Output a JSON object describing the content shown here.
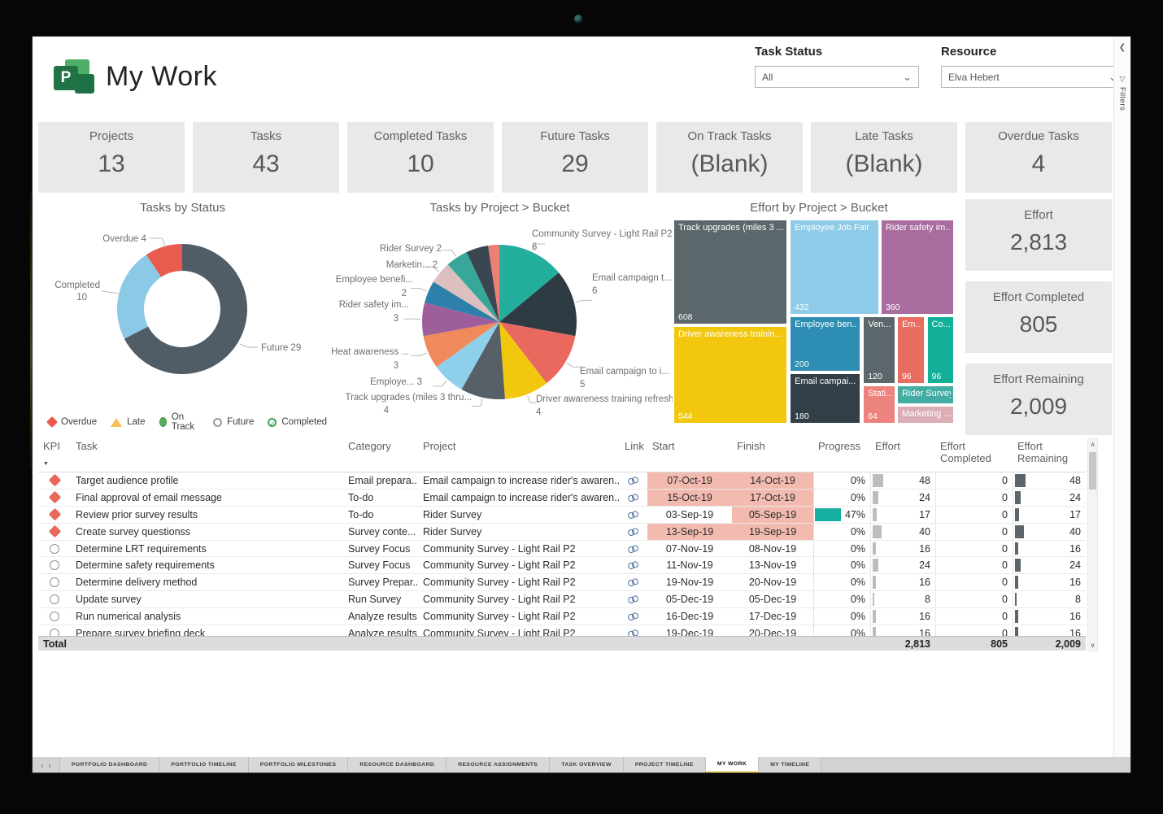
{
  "header": {
    "title": "My Work",
    "task_status_label": "Task Status",
    "task_status_value": "All",
    "resource_label": "Resource",
    "resource_value": "Elva Hebert",
    "filters_pane_label": "Filters"
  },
  "kpi_cards": [
    {
      "label": "Projects",
      "value": "13"
    },
    {
      "label": "Tasks",
      "value": "43"
    },
    {
      "label": "Completed Tasks",
      "value": "10"
    },
    {
      "label": "Future Tasks",
      "value": "29"
    },
    {
      "label": "On Track Tasks",
      "value": "(Blank)"
    },
    {
      "label": "Late Tasks",
      "value": "(Blank)"
    },
    {
      "label": "Overdue Tasks",
      "value": "4"
    }
  ],
  "effort_cards": [
    {
      "label": "Effort",
      "value": "2,813"
    },
    {
      "label": "Effort Completed",
      "value": "805"
    },
    {
      "label": "Effort Remaining",
      "value": "2,009"
    }
  ],
  "chart_data": [
    {
      "type": "donut",
      "title": "Tasks by Status",
      "series": [
        {
          "label": "Future",
          "value": 29,
          "color": "#505C66"
        },
        {
          "label": "Completed",
          "value": 10,
          "color": "#8CC9E6"
        },
        {
          "label": "Overdue",
          "value": 4,
          "color": "#E95A4F"
        }
      ],
      "legend": [
        {
          "label": "Overdue",
          "shape": "diamond",
          "color": "#E8594E"
        },
        {
          "label": "Late",
          "shape": "triangle",
          "color": "#F7BE5A"
        },
        {
          "label": "On Track",
          "shape": "circle",
          "color": "#5BAD5C"
        },
        {
          "label": "Future",
          "shape": "ring",
          "color": "#9A9A9A"
        },
        {
          "label": "Completed",
          "shape": "check",
          "color": "#3FA45B"
        }
      ]
    },
    {
      "type": "pie",
      "title": "Tasks by Project > Bucket",
      "slices": [
        {
          "label": "Community Survey - Light Rail P2",
          "value": 6,
          "color": "#23AE9D"
        },
        {
          "label": "Email campaign t...",
          "value": 6,
          "color": "#2F3B43"
        },
        {
          "label": "Email campaign to i...",
          "value": 5,
          "color": "#E9695E"
        },
        {
          "label": "Driver awareness training refresh",
          "value": 4,
          "color": "#F2C80F"
        },
        {
          "label": "Track upgrades (miles 3 thru...",
          "value": 4,
          "color": "#576066"
        },
        {
          "label": "Employe...",
          "value": 3,
          "color": "#8ED0EC"
        },
        {
          "label": "Heat awareness ...",
          "value": 3,
          "color": "#EF8A5B"
        },
        {
          "label": "Rider safety im...",
          "value": 3,
          "color": "#9D5E9B"
        },
        {
          "label": "Employee benefi...",
          "value": 2,
          "color": "#2C80A9"
        },
        {
          "label": "Marketin...",
          "value": 2,
          "color": "#DCBFBF"
        },
        {
          "label": "Rider Survey",
          "value": 2,
          "color": "#37A79A"
        },
        {
          "label": "",
          "value": 2,
          "color": "#3A4750"
        },
        {
          "label": "",
          "value": 1,
          "color": "#EE7F76"
        }
      ]
    },
    {
      "type": "treemap",
      "title": "Effort by Project > Bucket",
      "cells": [
        {
          "label": "Track upgrades (miles 3 ...",
          "value": "608",
          "color": "#5C676C"
        },
        {
          "label": "Driver awareness trainin...",
          "value": "544",
          "color": "#F2C80F"
        },
        {
          "label": "Employee Job Fair",
          "value": "432",
          "color": "#8DCBE8"
        },
        {
          "label": "Rider safety im...",
          "value": "360",
          "color": "#A96C9F"
        },
        {
          "label": "Employee ben...",
          "value": "200",
          "color": "#2D8DB2"
        },
        {
          "label": "Email campai...",
          "value": "180",
          "color": "#333F47"
        },
        {
          "label": "Ven...",
          "value": "120",
          "color": "#5C676C"
        },
        {
          "label": "Em...",
          "value": "96",
          "color": "#E96C60"
        },
        {
          "label": "Co...",
          "value": "96",
          "color": "#12B098"
        },
        {
          "label": "Stati...",
          "value": "64",
          "color": "#EC837C"
        },
        {
          "label": "Rider Survey",
          "value": "",
          "color": "#43ADA3"
        },
        {
          "label": "Marketing ...",
          "value": "",
          "color": "#DBAEB6"
        }
      ]
    }
  ],
  "table": {
    "headers": [
      "KPI",
      "Task",
      "Category",
      "Project",
      "Link",
      "Start",
      "Finish",
      "Progress",
      "Effort",
      "Effort Completed",
      "Effort Remaining"
    ],
    "highlight_color": "#F3BAAF",
    "progress_color": "#18AFA3",
    "effort_bar_color": "#BDBDBD",
    "remaining_bar_color": "#5B666C",
    "overdue_color": "#E8685C",
    "rows": [
      {
        "kpi": "overdue",
        "task": "Target audience profile",
        "category": "Email prepara...",
        "project": "Email campaign to increase rider's awaren...",
        "start": "07-Oct-19",
        "finish": "14-Oct-19",
        "start_hl": true,
        "finish_hl": true,
        "progress": "0%",
        "pct": 0,
        "effort": 48,
        "completed": 0,
        "remaining": 48
      },
      {
        "kpi": "overdue",
        "task": "Final approval of email message",
        "category": "To-do",
        "project": "Email campaign to increase rider's awaren...",
        "start": "15-Oct-19",
        "finish": "17-Oct-19",
        "start_hl": true,
        "finish_hl": true,
        "progress": "0%",
        "pct": 0,
        "effort": 24,
        "completed": 0,
        "remaining": 24
      },
      {
        "kpi": "overdue",
        "task": "Review prior survey results",
        "category": "To-do",
        "project": "Rider Survey",
        "start": "03-Sep-19",
        "finish": "05-Sep-19",
        "start_hl": false,
        "finish_hl": true,
        "progress": "47%",
        "pct": 47,
        "effort": 17,
        "completed": 0,
        "remaining": 17
      },
      {
        "kpi": "overdue",
        "task": "Create survey questionss",
        "category": "Survey conte...",
        "project": "Rider Survey",
        "start": "13-Sep-19",
        "finish": "19-Sep-19",
        "start_hl": true,
        "finish_hl": true,
        "progress": "0%",
        "pct": 0,
        "effort": 40,
        "completed": 0,
        "remaining": 40
      },
      {
        "kpi": "future",
        "task": "Determine LRT requirements",
        "category": "Survey Focus",
        "project": "Community Survey - Light Rail P2",
        "start": "07-Nov-19",
        "finish": "08-Nov-19",
        "start_hl": false,
        "finish_hl": false,
        "progress": "0%",
        "pct": 0,
        "effort": 16,
        "completed": 0,
        "remaining": 16
      },
      {
        "kpi": "future",
        "task": "Determine safety requirements",
        "category": "Survey Focus",
        "project": "Community Survey - Light Rail P2",
        "start": "11-Nov-19",
        "finish": "13-Nov-19",
        "start_hl": false,
        "finish_hl": false,
        "progress": "0%",
        "pct": 0,
        "effort": 24,
        "completed": 0,
        "remaining": 24
      },
      {
        "kpi": "future",
        "task": "Determine delivery method",
        "category": "Survey Prepar...",
        "project": "Community Survey - Light Rail P2",
        "start": "19-Nov-19",
        "finish": "20-Nov-19",
        "start_hl": false,
        "finish_hl": false,
        "progress": "0%",
        "pct": 0,
        "effort": 16,
        "completed": 0,
        "remaining": 16
      },
      {
        "kpi": "future",
        "task": "Update survey",
        "category": "Run Survey",
        "project": "Community Survey - Light Rail P2",
        "start": "05-Dec-19",
        "finish": "05-Dec-19",
        "start_hl": false,
        "finish_hl": false,
        "progress": "0%",
        "pct": 0,
        "effort": 8,
        "completed": 0,
        "remaining": 8
      },
      {
        "kpi": "future",
        "task": "Run numerical analysis",
        "category": "Analyze results",
        "project": "Community Survey - Light Rail P2",
        "start": "16-Dec-19",
        "finish": "17-Dec-19",
        "start_hl": false,
        "finish_hl": false,
        "progress": "0%",
        "pct": 0,
        "effort": 16,
        "completed": 0,
        "remaining": 16
      },
      {
        "kpi": "future",
        "task": "Prepare survey briefing deck",
        "category": "Analyze results",
        "project": "Community Survey - Light Rail P2",
        "start": "19-Dec-19",
        "finish": "20-Dec-19",
        "start_hl": false,
        "finish_hl": false,
        "progress": "0%",
        "pct": 0,
        "effort": 16,
        "completed": 0,
        "remaining": 16
      }
    ],
    "total": {
      "label": "Total",
      "effort": "2,813",
      "completed": "805",
      "remaining": "2,009"
    }
  },
  "tabs": {
    "items": [
      "PORTFOLIO DASHBOARD",
      "PORTFOLIO TIMELINE",
      "PORTFOLIO MILESTONES",
      "RESOURCE DASHBOARD",
      "RESOURCE ASSIGNMENTS",
      "TASK OVERVIEW",
      "PROJECT TIMELINE",
      "MY WORK",
      "MY TIMELINE"
    ],
    "active": "MY WORK"
  }
}
